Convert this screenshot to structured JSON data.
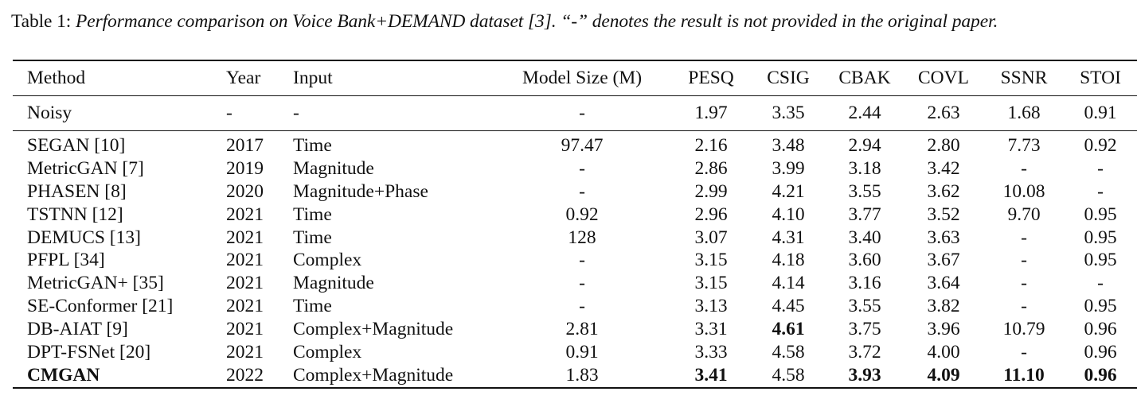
{
  "caption": {
    "label": "Table 1: ",
    "text": "Performance comparison on Voice Bank+DEMAND dataset [3]. “-” denotes the result is not provided in the original paper."
  },
  "table": {
    "headers": [
      "Method",
      "Year",
      "Input",
      "Model Size (M)",
      "PESQ",
      "CSIG",
      "CBAK",
      "COVL",
      "SSNR",
      "STOI"
    ],
    "noisy": [
      "Noisy",
      "-",
      "-",
      "-",
      "1.97",
      "3.35",
      "2.44",
      "2.63",
      "1.68",
      "0.91"
    ],
    "rows": [
      [
        "SEGAN [10]",
        "2017",
        "Time",
        "97.47",
        "2.16",
        "3.48",
        "2.94",
        "2.80",
        "7.73",
        "0.92"
      ],
      [
        "MetricGAN [7]",
        "2019",
        "Magnitude",
        "-",
        "2.86",
        "3.99",
        "3.18",
        "3.42",
        "-",
        "-"
      ],
      [
        "PHASEN [8]",
        "2020",
        "Magnitude+Phase",
        "-",
        "2.99",
        "4.21",
        "3.55",
        "3.62",
        "10.08",
        "-"
      ],
      [
        "TSTNN [12]",
        "2021",
        "Time",
        "0.92",
        "2.96",
        "4.10",
        "3.77",
        "3.52",
        "9.70",
        "0.95"
      ],
      [
        "DEMUCS [13]",
        "2021",
        "Time",
        "128",
        "3.07",
        "4.31",
        "3.40",
        "3.63",
        "-",
        "0.95"
      ],
      [
        "PFPL [34]",
        "2021",
        "Complex",
        "-",
        "3.15",
        "4.18",
        "3.60",
        "3.67",
        "-",
        "0.95"
      ],
      [
        "MetricGAN+ [35]",
        "2021",
        "Magnitude",
        "-",
        "3.15",
        "4.14",
        "3.16",
        "3.64",
        "-",
        "-"
      ],
      [
        "SE-Conformer [21]",
        "2021",
        "Time",
        "-",
        "3.13",
        "4.45",
        "3.55",
        "3.82",
        "-",
        "0.95"
      ],
      [
        "DB-AIAT [9]",
        "2021",
        "Complex+Magnitude",
        "2.81",
        "3.31",
        "4.61",
        "3.75",
        "3.96",
        "10.79",
        "0.96"
      ],
      [
        "DPT-FSNet [20]",
        "2021",
        "Complex",
        "0.91",
        "3.33",
        "4.58",
        "3.72",
        "4.00",
        "-",
        "0.96"
      ],
      [
        "CMGAN",
        "2022",
        "Complex+Magnitude",
        "1.83",
        "3.41",
        "4.58",
        "3.93",
        "4.09",
        "11.10",
        "0.96"
      ]
    ]
  }
}
